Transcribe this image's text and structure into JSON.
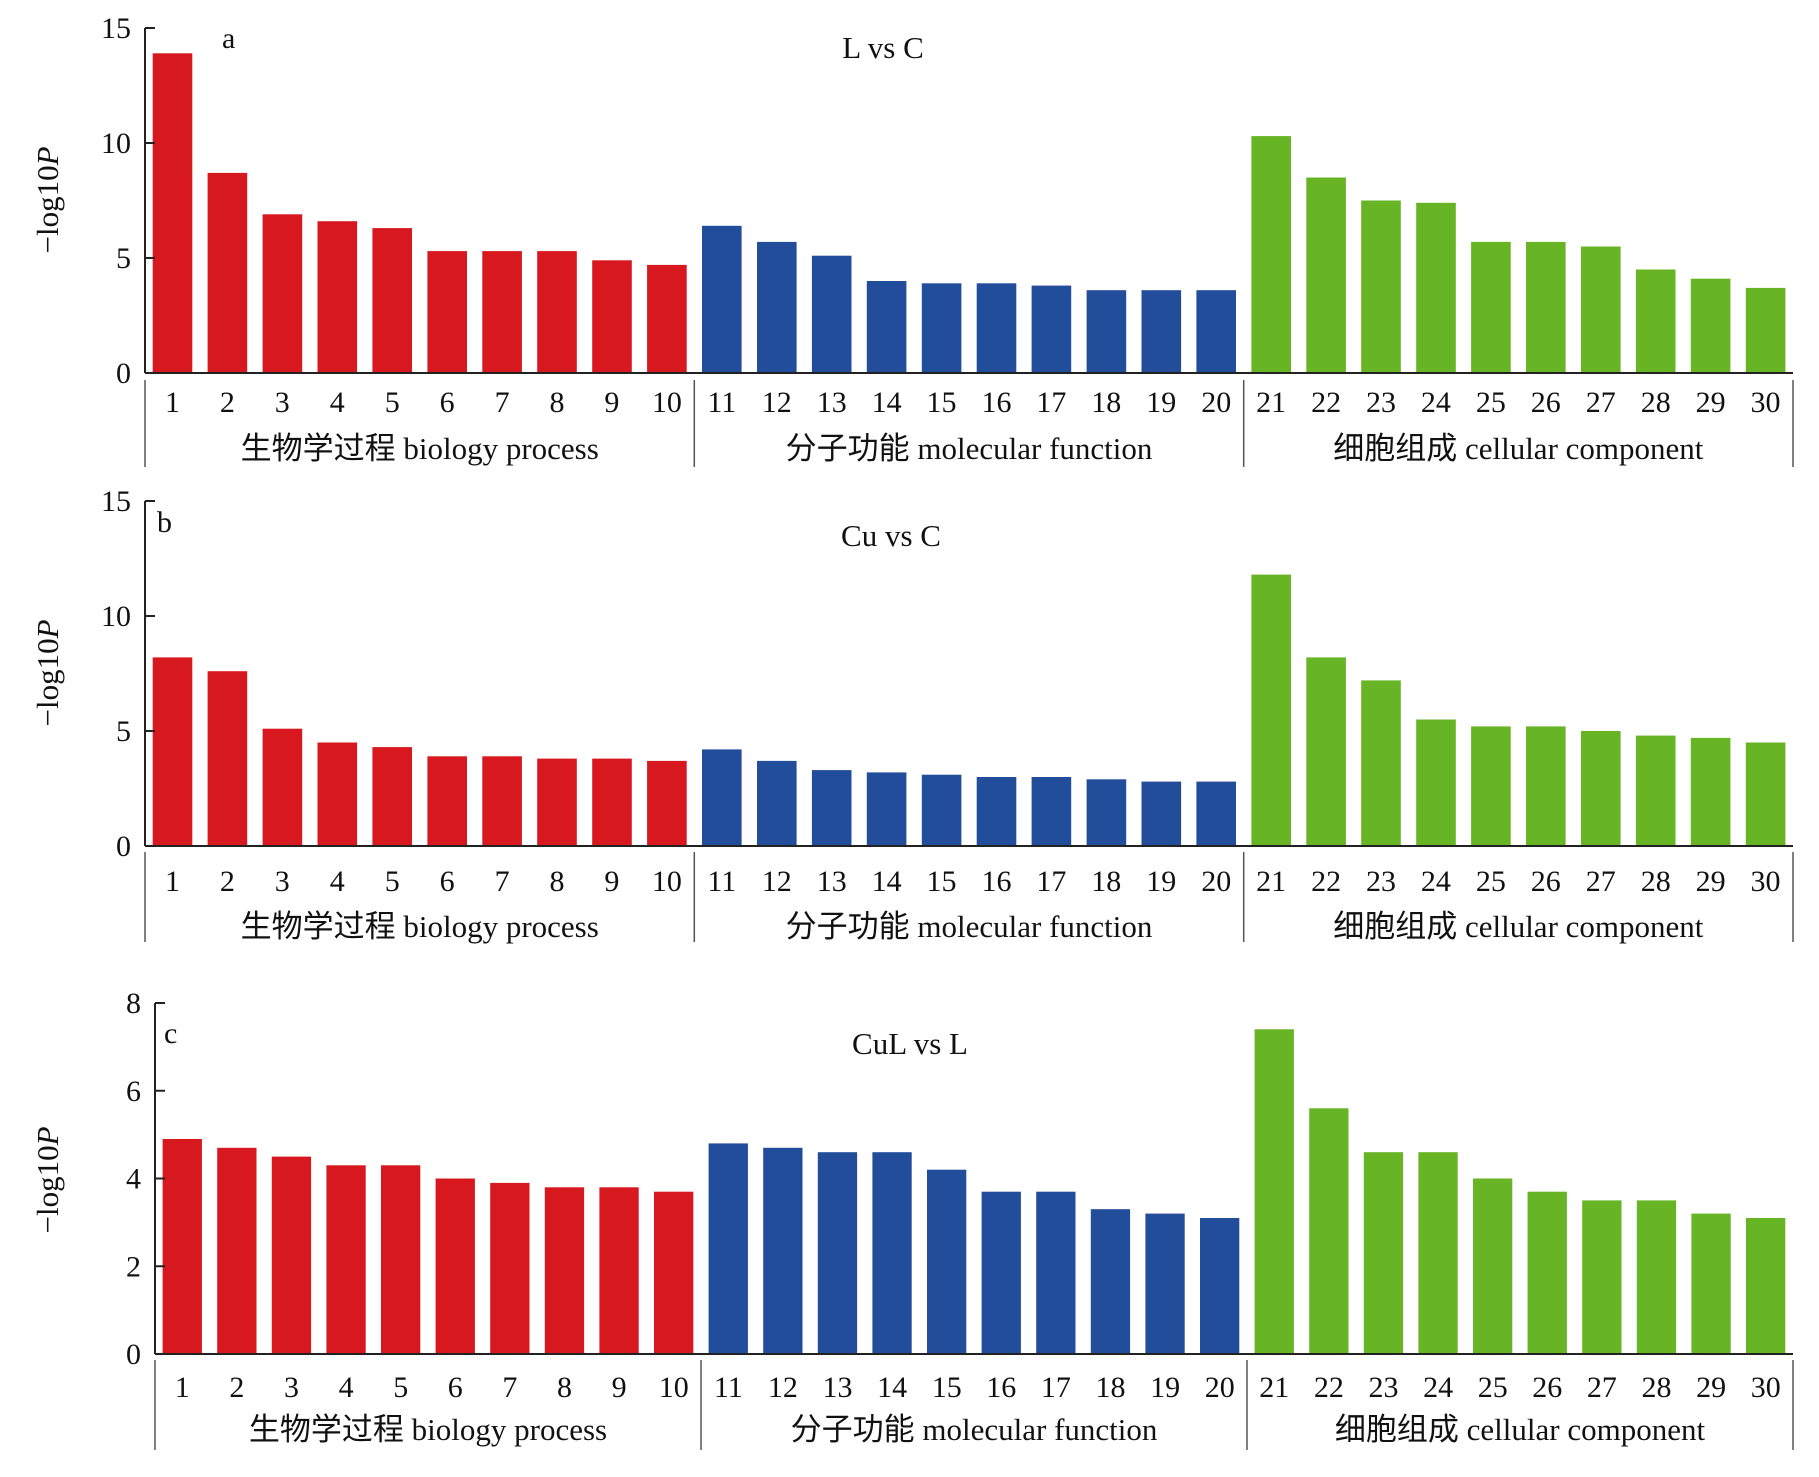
{
  "colors": {
    "biology_process": "#d7181f",
    "molecular_function": "#214d9b",
    "cellular_component": "#67b424",
    "axis": "#222222"
  },
  "chart_data": [
    {
      "type": "bar",
      "panel": "a",
      "title": "L vs C",
      "ylabel": "−log10P",
      "ylim": [
        0,
        15
      ],
      "yticks": [
        0,
        5,
        10,
        15
      ],
      "categories": [
        "1",
        "2",
        "3",
        "4",
        "5",
        "6",
        "7",
        "8",
        "9",
        "10",
        "11",
        "12",
        "13",
        "14",
        "15",
        "16",
        "17",
        "18",
        "19",
        "20",
        "21",
        "22",
        "23",
        "24",
        "25",
        "26",
        "27",
        "28",
        "29",
        "30"
      ],
      "values": [
        13.9,
        8.7,
        6.9,
        6.6,
        6.3,
        5.3,
        5.3,
        5.3,
        4.9,
        4.7,
        6.4,
        5.7,
        5.1,
        4.0,
        3.9,
        3.9,
        3.8,
        3.6,
        3.6,
        3.6,
        10.3,
        8.5,
        7.5,
        7.4,
        5.7,
        5.7,
        5.5,
        4.5,
        4.1,
        3.7
      ],
      "groups": [
        {
          "label": "生物学过程 biology process",
          "color_key": "biology_process",
          "start": 0,
          "end": 9
        },
        {
          "label": "分子功能 molecular function",
          "color_key": "molecular_function",
          "start": 10,
          "end": 19
        },
        {
          "label": "细胞组成 cellular component",
          "color_key": "cellular_component",
          "start": 20,
          "end": 29
        }
      ]
    },
    {
      "type": "bar",
      "panel": "b",
      "title": "Cu vs C",
      "ylabel": "−log10P",
      "ylim": [
        0,
        15
      ],
      "yticks": [
        0,
        5,
        10,
        15
      ],
      "categories": [
        "1",
        "2",
        "3",
        "4",
        "5",
        "6",
        "7",
        "8",
        "9",
        "10",
        "11",
        "12",
        "13",
        "14",
        "15",
        "16",
        "17",
        "18",
        "19",
        "20",
        "21",
        "22",
        "23",
        "24",
        "25",
        "26",
        "27",
        "28",
        "29",
        "30"
      ],
      "values": [
        8.2,
        7.6,
        5.1,
        4.5,
        4.3,
        3.9,
        3.9,
        3.8,
        3.8,
        3.7,
        4.2,
        3.7,
        3.3,
        3.2,
        3.1,
        3.0,
        3.0,
        2.9,
        2.8,
        2.8,
        11.8,
        8.2,
        7.2,
        5.5,
        5.2,
        5.2,
        5.0,
        4.8,
        4.7,
        4.5
      ],
      "groups": [
        {
          "label": "生物学过程 biology process",
          "color_key": "biology_process",
          "start": 0,
          "end": 9
        },
        {
          "label": "分子功能 molecular function",
          "color_key": "molecular_function",
          "start": 10,
          "end": 19
        },
        {
          "label": "细胞组成 cellular component",
          "color_key": "cellular_component",
          "start": 20,
          "end": 29
        }
      ]
    },
    {
      "type": "bar",
      "panel": "c",
      "title": "CuL vs L",
      "ylabel": "−log10P",
      "ylim": [
        0,
        8
      ],
      "yticks": [
        0,
        2,
        4,
        6,
        8
      ],
      "categories": [
        "1",
        "2",
        "3",
        "4",
        "5",
        "6",
        "7",
        "8",
        "9",
        "10",
        "11",
        "12",
        "13",
        "14",
        "15",
        "16",
        "17",
        "18",
        "19",
        "20",
        "21",
        "22",
        "23",
        "24",
        "25",
        "26",
        "27",
        "28",
        "29",
        "30"
      ],
      "values": [
        4.9,
        4.7,
        4.5,
        4.3,
        4.3,
        4.0,
        3.9,
        3.8,
        3.8,
        3.7,
        4.8,
        4.7,
        4.6,
        4.6,
        4.2,
        3.7,
        3.7,
        3.3,
        3.2,
        3.1,
        7.4,
        5.6,
        4.6,
        4.6,
        4.0,
        3.7,
        3.5,
        3.5,
        3.2,
        3.1
      ],
      "groups": [
        {
          "label": "生物学过程 biology process",
          "color_key": "biology_process",
          "start": 0,
          "end": 9
        },
        {
          "label": "分子功能 molecular function",
          "color_key": "molecular_function",
          "start": 10,
          "end": 19
        },
        {
          "label": "细胞组成 cellular component",
          "color_key": "cellular_component",
          "start": 20,
          "end": 29
        }
      ]
    }
  ]
}
